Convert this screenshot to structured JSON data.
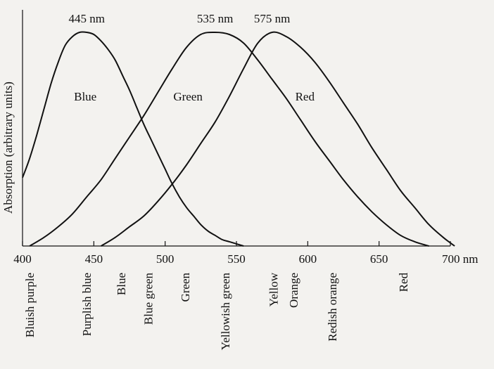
{
  "chart_data": {
    "type": "line",
    "ylabel": "Absorption (arbitrary units)",
    "x_unit": "nm",
    "xlim": [
      400,
      700
    ],
    "x_ticks": [
      400,
      450,
      500,
      550,
      600,
      650,
      700
    ],
    "tick_labels": [
      "400",
      "450",
      "500",
      "550",
      "600",
      "650",
      "700 nm"
    ],
    "ylim": [
      0,
      1
    ],
    "series": [
      {
        "name": "Blue",
        "peak_label": "445 nm",
        "x": [
          400,
          405,
          410,
          415,
          420,
          425,
          430,
          435,
          440,
          445,
          450,
          455,
          460,
          465,
          470,
          475,
          480,
          485,
          490,
          495,
          500,
          505,
          510,
          515,
          520,
          525,
          530,
          535,
          540,
          545,
          550,
          555
        ],
        "y": [
          0.32,
          0.41,
          0.52,
          0.64,
          0.76,
          0.86,
          0.94,
          0.98,
          1.0,
          1.0,
          0.99,
          0.96,
          0.92,
          0.87,
          0.8,
          0.73,
          0.65,
          0.57,
          0.5,
          0.43,
          0.36,
          0.29,
          0.23,
          0.18,
          0.14,
          0.1,
          0.07,
          0.05,
          0.03,
          0.02,
          0.01,
          0.0
        ]
      },
      {
        "name": "Green",
        "peak_label": "535 nm",
        "x": [
          405,
          415,
          425,
          435,
          445,
          455,
          465,
          475,
          485,
          495,
          505,
          515,
          525,
          535,
          545,
          555,
          565,
          575,
          585,
          595,
          605,
          615,
          625,
          635,
          645,
          655,
          665,
          675,
          685
        ],
        "y": [
          0.0,
          0.04,
          0.09,
          0.15,
          0.23,
          0.31,
          0.41,
          0.51,
          0.61,
          0.72,
          0.83,
          0.93,
          0.99,
          1.0,
          0.99,
          0.95,
          0.87,
          0.78,
          0.69,
          0.59,
          0.49,
          0.4,
          0.31,
          0.23,
          0.16,
          0.1,
          0.05,
          0.02,
          0.0
        ]
      },
      {
        "name": "Red",
        "peak_label": "575 nm",
        "x": [
          455,
          465,
          475,
          485,
          495,
          505,
          515,
          525,
          535,
          545,
          555,
          565,
          575,
          585,
          595,
          605,
          615,
          625,
          635,
          645,
          655,
          665,
          675,
          685,
          695,
          703
        ],
        "y": [
          0.0,
          0.04,
          0.09,
          0.14,
          0.21,
          0.29,
          0.38,
          0.48,
          0.58,
          0.7,
          0.83,
          0.95,
          1.0,
          0.98,
          0.93,
          0.86,
          0.77,
          0.67,
          0.57,
          0.46,
          0.36,
          0.26,
          0.18,
          0.1,
          0.04,
          0.0
        ]
      }
    ],
    "curve_labels": [
      {
        "text": "Blue",
        "x": 444,
        "y": 0.7
      },
      {
        "text": "Green",
        "x": 516,
        "y": 0.7
      },
      {
        "text": "Red",
        "x": 598,
        "y": 0.7
      }
    ],
    "peak_labels": [
      {
        "text": "445 nm",
        "x": 445
      },
      {
        "text": "535 nm",
        "x": 535
      },
      {
        "text": "575 nm",
        "x": 575
      }
    ],
    "color_names": [
      {
        "text": "Bluish purple",
        "x": 405
      },
      {
        "text": "Purplish blue",
        "x": 445
      },
      {
        "text": "Blue",
        "x": 469
      },
      {
        "text": "Blue green",
        "x": 488
      },
      {
        "text": "Green",
        "x": 514
      },
      {
        "text": "Yellowish green",
        "x": 542
      },
      {
        "text": "Yellow",
        "x": 576
      },
      {
        "text": "Orange",
        "x": 590
      },
      {
        "text": "Redish orange",
        "x": 617
      },
      {
        "text": "Red",
        "x": 667
      }
    ],
    "line_color": "#111111",
    "background": "#f3f2ef",
    "grid": false,
    "legend": "none"
  }
}
